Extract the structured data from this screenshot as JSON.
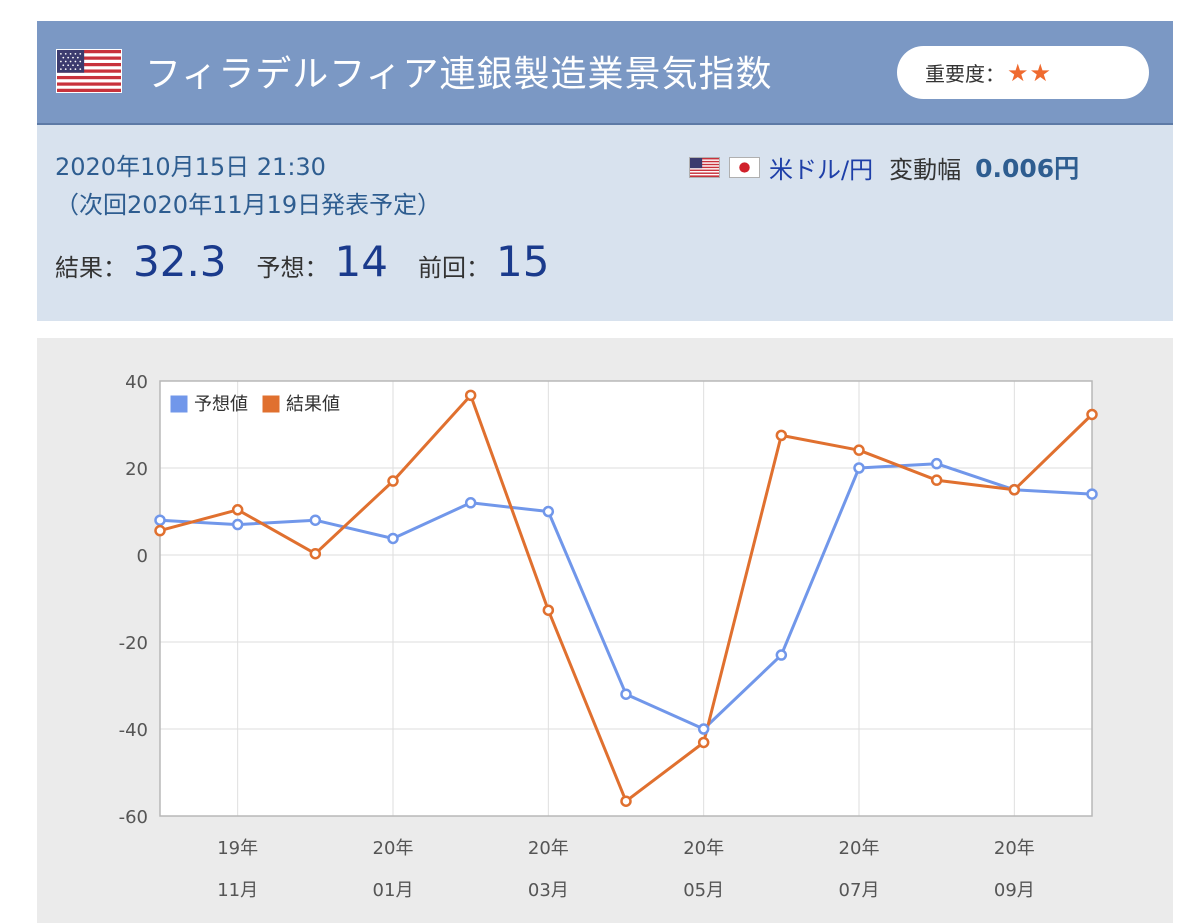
{
  "header": {
    "title": "フィラデルフィア連銀製造業景気指数",
    "importance_label": "重要度：",
    "importance_stars": "★★",
    "flag_icon": "us-flag-icon"
  },
  "info": {
    "date": "2020年10月15日 21:30",
    "next_release": "（次回2020年11月19日発表予定）",
    "pair": "米ドル/円",
    "range_label": "変動幅",
    "range_value": "0.006円",
    "result_label": "結果：",
    "result_value": "32.3",
    "forecast_label": "予想：",
    "forecast_value": "14",
    "previous_label": "前回：",
    "previous_value": "15"
  },
  "colors": {
    "header_bg": "#7b98c4",
    "info_bg": "#d8e2ee",
    "forecast_series": "#7197ea",
    "result_series": "#e0702f",
    "star": "#ef6a2f"
  },
  "chart_data": {
    "type": "line",
    "x": [
      "2019-10",
      "2019-11",
      "2019-12",
      "2020-01",
      "2020-02",
      "2020-03",
      "2020-04",
      "2020-05",
      "2020-06",
      "2020-07",
      "2020-08",
      "2020-09",
      "2020-10"
    ],
    "x_tick_labels": [
      {
        "month": "2019-11",
        "year": "19年",
        "mon": "11月"
      },
      {
        "month": "2020-01",
        "year": "20年",
        "mon": "01月"
      },
      {
        "month": "2020-03",
        "year": "20年",
        "mon": "03月"
      },
      {
        "month": "2020-05",
        "year": "20年",
        "mon": "05月"
      },
      {
        "month": "2020-07",
        "year": "20年",
        "mon": "07月"
      },
      {
        "month": "2020-09",
        "year": "20年",
        "mon": "09月"
      }
    ],
    "series": [
      {
        "name": "予想値",
        "values": [
          8,
          7,
          8,
          3.8,
          12,
          10,
          -32,
          -40,
          -23,
          20,
          21,
          15,
          14
        ]
      },
      {
        "name": "結果値",
        "values": [
          5.6,
          10.4,
          0.3,
          17,
          36.7,
          -12.7,
          -56.6,
          -43.1,
          27.5,
          24.1,
          17.2,
          15,
          32.3
        ]
      }
    ],
    "ylim": [
      -60,
      40
    ],
    "yticks": [
      40,
      20,
      0,
      -20,
      -40,
      -60
    ],
    "grid": true,
    "legend": "top-left"
  }
}
